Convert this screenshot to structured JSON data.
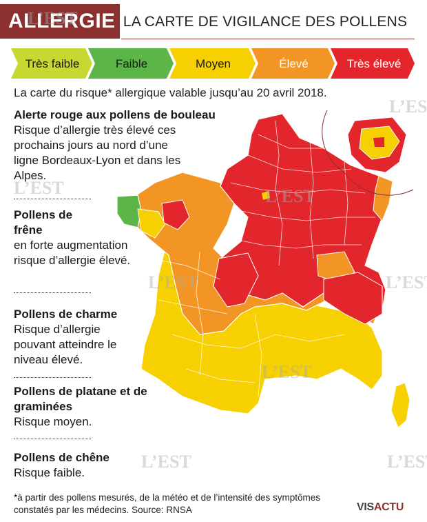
{
  "header": {
    "tag": "ALLERGIE",
    "title": "LA CARTE DE VIGILANCE DES POLLENS"
  },
  "legend": {
    "items": [
      {
        "label": "Très faible",
        "color": "#c6d831"
      },
      {
        "label": "Faible",
        "color": "#5cb547"
      },
      {
        "label": "Moyen",
        "color": "#f6d000"
      },
      {
        "label": "Élevé",
        "color": "#f39524"
      },
      {
        "label": "Très élevé",
        "color": "#e3262b"
      }
    ]
  },
  "intro": "La carte du risque* allergique valable jusqu’au 20 avril 2018.",
  "blocks": [
    {
      "title": "Alerte rouge aux pollens de bouleau",
      "text": "Risque d’allergie très élevé ces prochains jours au nord d’une ligne Bordeaux-Lyon et dans les Alpes."
    },
    {
      "title": "Pollens de frêne",
      "text": "en forte augmentation risque d’allergie élevé."
    },
    {
      "title": "Pollens de charme",
      "text": "Risque d’allergie pouvant atteindre le niveau élevé."
    },
    {
      "title": "Pollens de platane et de graminées",
      "text": "Risque moyen."
    },
    {
      "title": "Pollens de chêne",
      "text": "Risque faible."
    }
  ],
  "footnote": "*à partir des pollens mesurés, de la météo et de l’intensité des symptômes constatés par les médecins. Source: RNSA",
  "logo": {
    "part1": "VIS",
    "part2": "ACTU"
  },
  "watermark": "L’EST",
  "map": {
    "risk_levels": {
      "very_low": "Très faible",
      "low": "Faible",
      "medium": "Moyen",
      "high": "Élevé",
      "very_high": "Très élevé"
    }
  }
}
